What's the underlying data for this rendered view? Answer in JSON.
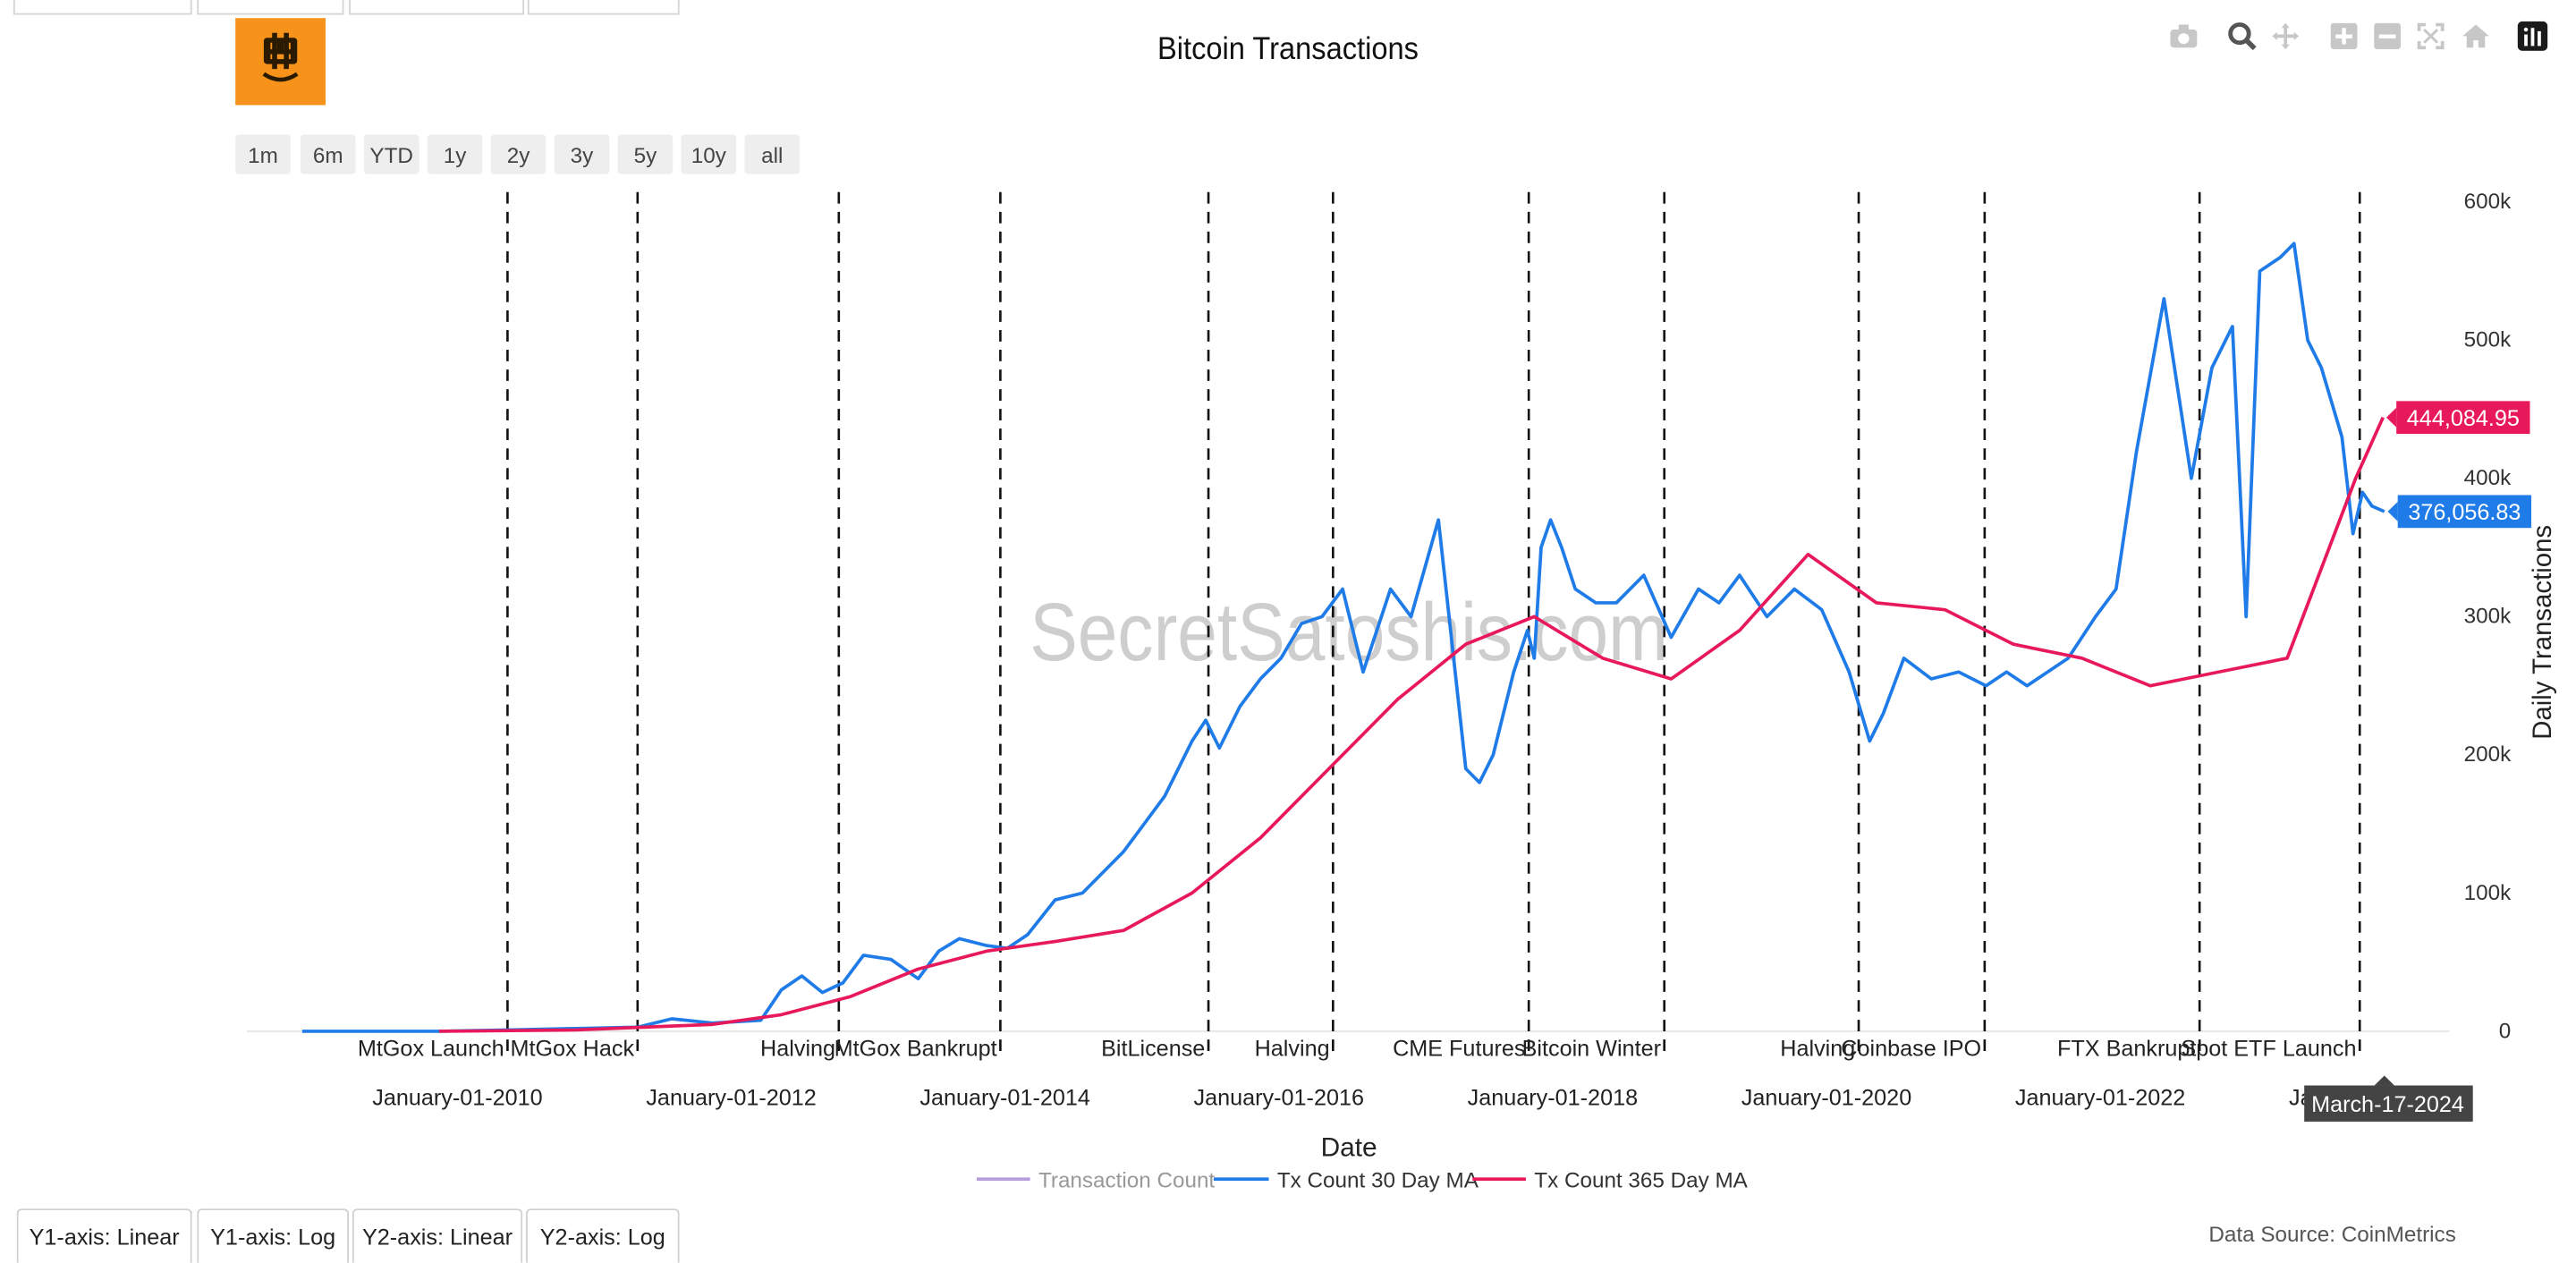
{
  "chart_data": {
    "type": "line",
    "title": "Bitcoin Transactions",
    "xlabel": "Date",
    "ylabel": "Daily Transactions",
    "x_range": [
      2009.0,
      2025.3
    ],
    "ylim": [
      0,
      600000
    ],
    "y_ticks": [
      {
        "value": 0,
        "label": "0"
      },
      {
        "value": 100000,
        "label": "100k"
      },
      {
        "value": 200000,
        "label": "200k"
      },
      {
        "value": 300000,
        "label": "300k"
      },
      {
        "value": 400000,
        "label": "400k"
      },
      {
        "value": 500000,
        "label": "500k"
      },
      {
        "value": 600000,
        "label": "600k"
      }
    ],
    "x_ticks": [
      {
        "value": 2010.0,
        "label": "January-01-2010"
      },
      {
        "value": 2012.0,
        "label": "January-01-2012"
      },
      {
        "value": 2014.0,
        "label": "January-01-2014"
      },
      {
        "value": 2016.0,
        "label": "January-01-2016"
      },
      {
        "value": 2018.0,
        "label": "January-01-2018"
      },
      {
        "value": 2020.0,
        "label": "January-01-2020"
      },
      {
        "value": 2022.0,
        "label": "January-01-2022"
      },
      {
        "value": 2024.0,
        "label": "Ja"
      }
    ],
    "events": [
      {
        "x": 2010.5,
        "label": "MtGox Launch"
      },
      {
        "x": 2011.45,
        "label": "MtGox Hack"
      },
      {
        "x": 2012.92,
        "label": "Halving"
      },
      {
        "x": 2014.1,
        "label": "MtGox Bankrupt"
      },
      {
        "x": 2015.62,
        "label": "BitLicense"
      },
      {
        "x": 2016.53,
        "label": "Halving"
      },
      {
        "x": 2017.96,
        "label": "CME Futures"
      },
      {
        "x": 2018.95,
        "label": "Bitcoin Winter"
      },
      {
        "x": 2020.37,
        "label": "Halving"
      },
      {
        "x": 2021.29,
        "label": "Coinbase IPO"
      },
      {
        "x": 2022.86,
        "label": "FTX Bankrupt"
      },
      {
        "x": 2024.03,
        "label": "Spot ETF Launch"
      }
    ],
    "series": [
      {
        "name": "Transaction Count",
        "color": "#b39ddb",
        "visible": false,
        "x": [],
        "y": []
      },
      {
        "name": "Tx Count 30 Day MA",
        "color": "#1e7be8",
        "x": [
          2009.0,
          2010.0,
          2010.5,
          2011.0,
          2011.45,
          2011.7,
          2012.0,
          2012.35,
          2012.5,
          2012.65,
          2012.8,
          2012.95,
          2013.1,
          2013.3,
          2013.5,
          2013.65,
          2013.8,
          2014.0,
          2014.15,
          2014.3,
          2014.5,
          2014.7,
          2015.0,
          2015.3,
          2015.5,
          2015.6,
          2015.7,
          2015.85,
          2016.0,
          2016.15,
          2016.3,
          2016.45,
          2016.6,
          2016.75,
          2016.95,
          2017.1,
          2017.3,
          2017.5,
          2017.6,
          2017.7,
          2017.85,
          2017.95,
          2018.0,
          2018.05,
          2018.12,
          2018.2,
          2018.3,
          2018.45,
          2018.6,
          2018.8,
          2019.0,
          2019.2,
          2019.35,
          2019.5,
          2019.7,
          2019.9,
          2020.1,
          2020.3,
          2020.45,
          2020.55,
          2020.7,
          2020.9,
          2021.1,
          2021.3,
          2021.45,
          2021.6,
          2021.75,
          2021.9,
          2022.1,
          2022.25,
          2022.4,
          2022.6,
          2022.8,
          2022.95,
          2023.1,
          2023.2,
          2023.3,
          2023.45,
          2023.55,
          2023.65,
          2023.75,
          2023.9,
          2023.98,
          2024.05,
          2024.12,
          2024.21
        ],
        "y": [
          0,
          0,
          1000,
          2000,
          3000,
          9000,
          6000,
          8000,
          30000,
          40000,
          28000,
          35000,
          55000,
          52000,
          38000,
          58000,
          67000,
          62000,
          60000,
          70000,
          95000,
          100000,
          130000,
          170000,
          210000,
          225000,
          205000,
          235000,
          255000,
          270000,
          295000,
          300000,
          320000,
          260000,
          320000,
          300000,
          370000,
          190000,
          180000,
          200000,
          260000,
          290000,
          270000,
          350000,
          370000,
          350000,
          320000,
          310000,
          310000,
          330000,
          285000,
          320000,
          310000,
          330000,
          300000,
          320000,
          305000,
          260000,
          210000,
          230000,
          270000,
          255000,
          260000,
          250000,
          260000,
          250000,
          260000,
          270000,
          300000,
          320000,
          420000,
          530000,
          400000,
          480000,
          510000,
          300000,
          550000,
          560000,
          570000,
          500000,
          480000,
          430000,
          360000,
          390000,
          380000,
          376056.83
        ]
      },
      {
        "name": "Tx Count 365 Day MA",
        "color": "#e8195a",
        "x": [
          2010.0,
          2011.0,
          2012.0,
          2012.5,
          2013.0,
          2013.5,
          2014.0,
          2014.5,
          2015.0,
          2015.5,
          2016.0,
          2016.5,
          2017.0,
          2017.5,
          2018.0,
          2018.5,
          2019.0,
          2019.5,
          2020.0,
          2020.5,
          2021.0,
          2021.5,
          2022.0,
          2022.5,
          2023.0,
          2023.5,
          2024.0,
          2024.2
        ],
        "y": [
          0,
          1000,
          5000,
          12000,
          25000,
          45000,
          58000,
          65000,
          73000,
          100000,
          140000,
          190000,
          240000,
          280000,
          300000,
          270000,
          255000,
          290000,
          345000,
          310000,
          305000,
          280000,
          270000,
          250000,
          260000,
          270000,
          400000,
          444084.95
        ]
      }
    ],
    "last_values": [
      {
        "series": "Tx Count 365 Day MA",
        "label": "444,084.95"
      },
      {
        "series": "Tx Count 30 Day MA",
        "label": "376,056.83"
      }
    ],
    "hover_date": "March-17-2024",
    "watermark": "SecretSatoshis.com",
    "legend_position": "bottom-center"
  },
  "range_selector": [
    "1m",
    "6m",
    "YTD",
    "1y",
    "2y",
    "3y",
    "5y",
    "10y",
    "all"
  ],
  "axis_buttons": [
    "Y1-axis: Linear",
    "Y1-axis: Log",
    "Y2-axis: Linear",
    "Y2-axis: Log"
  ],
  "modebar_icons": [
    "camera-icon",
    "zoom-icon",
    "pan-icon",
    "zoom-in-icon",
    "zoom-out-icon",
    "autoscale-icon",
    "reset-axes-icon",
    "plotly-logo-icon"
  ],
  "source_text": "Data Source: CoinMetrics"
}
